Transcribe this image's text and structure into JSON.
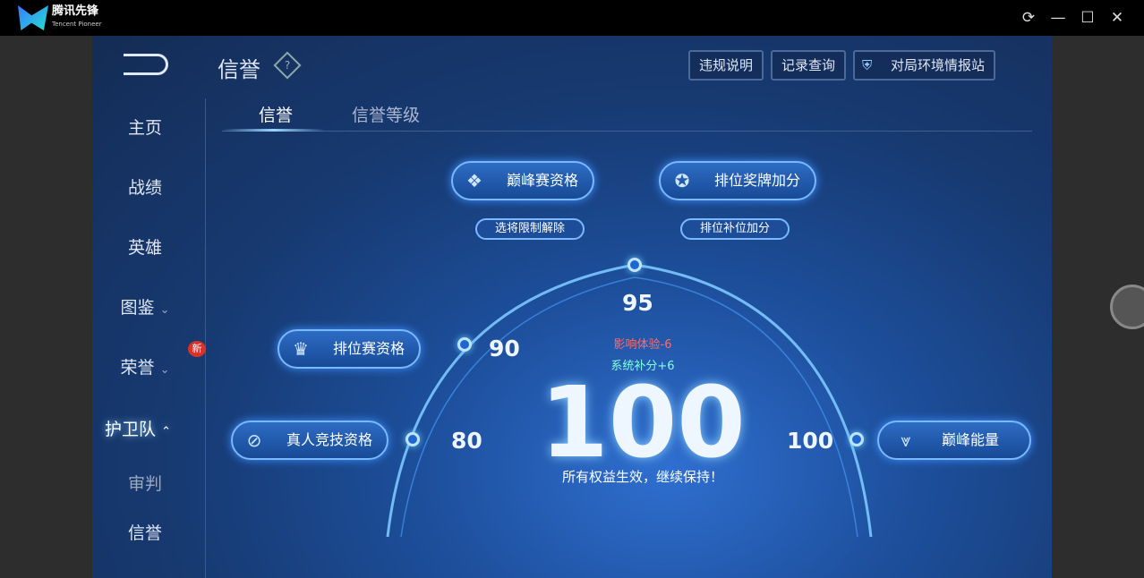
{
  "window": {
    "brand": "腾讯先锋",
    "brand_sub": "Tencent Pioneer",
    "controls": [
      "refresh-icon",
      "maximize-icon",
      "restore-icon",
      "close-icon"
    ]
  },
  "header": {
    "title": "信誉",
    "help": "?",
    "buttons": [
      "违规说明",
      "记录查询",
      "对局环境情报站"
    ]
  },
  "nav": {
    "items": [
      {
        "label": "主页"
      },
      {
        "label": "战绩"
      },
      {
        "label": "英雄"
      },
      {
        "label": "图鉴"
      },
      {
        "label": "荣誉",
        "badge": "新"
      },
      {
        "label": "护卫队"
      },
      {
        "label": "审判"
      },
      {
        "label": "信誉"
      }
    ],
    "active": "护卫队"
  },
  "tabs": [
    "信誉",
    "信誉等级"
  ],
  "credit": {
    "score": "100",
    "penalty": "影响体验-6",
    "bonus": "系统补分+6",
    "status": "所有权益生效，继续保持！",
    "thresholds": [
      "80",
      "90",
      "95",
      "100"
    ],
    "privileges": {
      "p80": "真人竞技资格",
      "p90": "排位赛资格",
      "p95a": "巅峰赛资格",
      "p95b": "排位奖牌加分",
      "p95a_sub": "选将限制解除",
      "p95b_sub": "排位补位加分",
      "p100": "巅峰能量"
    }
  },
  "colors": {
    "penalty": "#ff6a6a",
    "bonus": "#7fffe0",
    "badge": "#d8322a"
  }
}
